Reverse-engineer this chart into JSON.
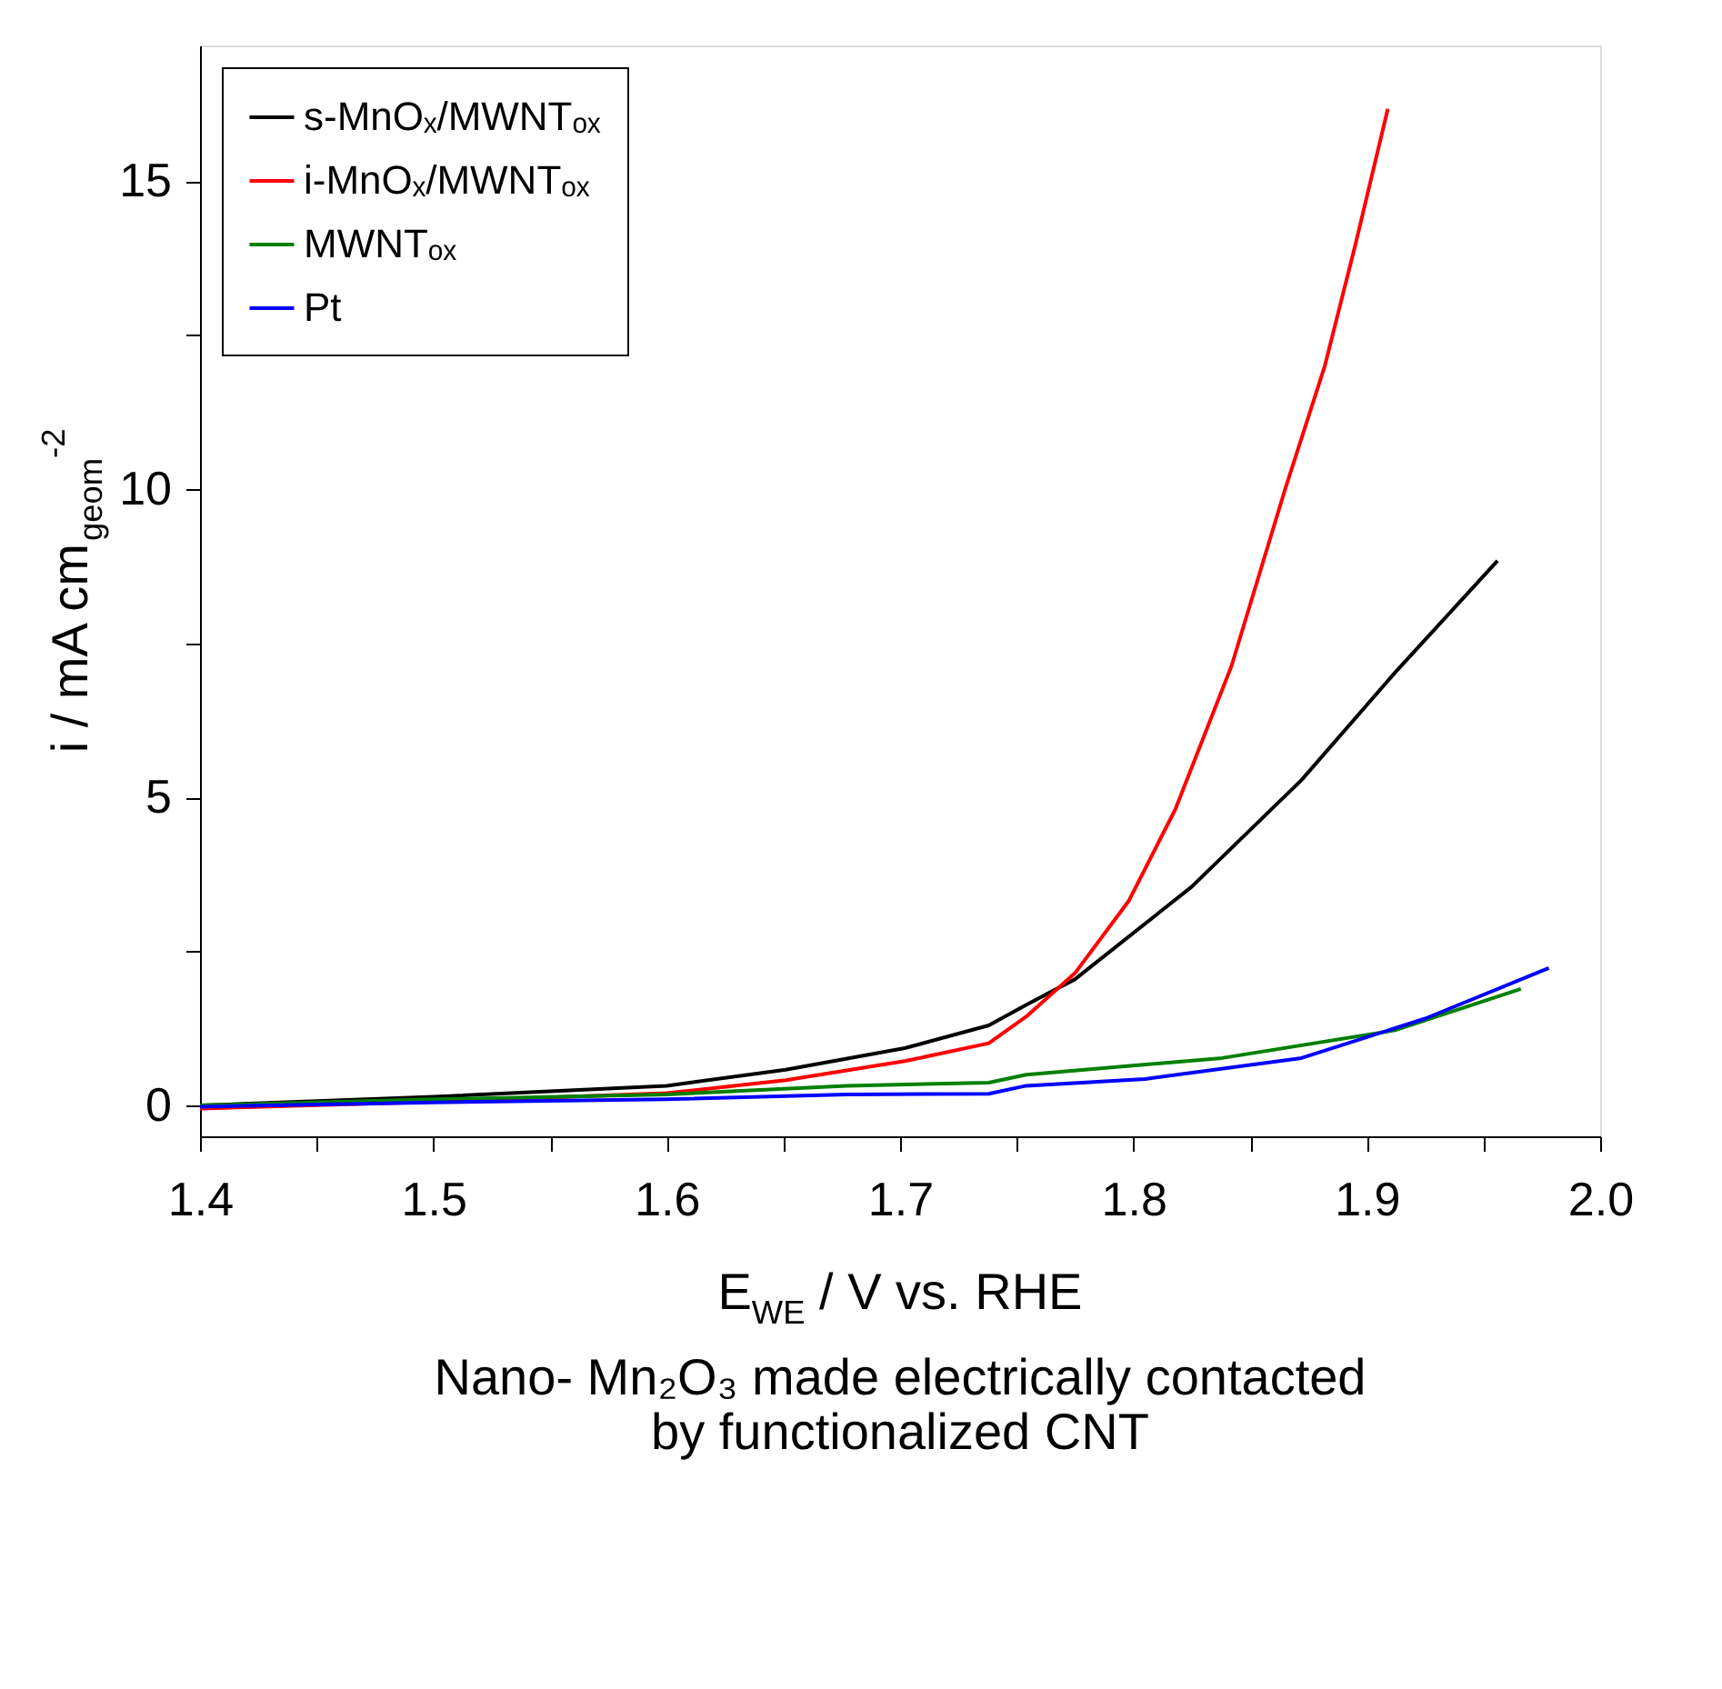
{
  "chart_data": {
    "type": "line",
    "xlabel": "E$_{WE}$ / V vs. RHE",
    "ylabel": "i / mA cm$_{geom}$$^{-2}$",
    "annotations": [
      "Nano- Mn₂O₃ made electrically contacted by functionalized CNT"
    ],
    "xlim": [
      1.4,
      2.0
    ],
    "ylim": [
      -0.5,
      17.2
    ],
    "xticks": [
      1.4,
      {
        "value": 1.45,
        "label": null
      },
      1.5,
      {
        "value": 1.55,
        "label": null
      },
      1.6,
      {
        "value": 1.65,
        "label": null
      },
      1.7,
      {
        "value": 1.75,
        "label": null
      },
      1.8,
      {
        "value": 1.85,
        "label": null
      },
      1.9,
      {
        "value": 1.95,
        "label": null
      },
      {
        "value": 2.0,
        "label": "2.0"
      }
    ],
    "yticks": [
      0,
      {
        "value": 2.5,
        "label": null
      },
      5,
      {
        "value": 7.5,
        "label": null
      },
      10,
      {
        "value": 12.5,
        "label": null
      },
      15
    ],
    "grid": false,
    "legend": "top left",
    "marker": "none",
    "line_style": "solid",
    "series": [
      {
        "name": "s-MnOₓ/MWNTₒₓ",
        "color": "#000000",
        "x": [
          1.4,
          1.5,
          1.6,
          1.651,
          1.702,
          1.738,
          1.754,
          1.775,
          1.825,
          1.872,
          1.912,
          1.956
        ],
        "values": [
          0.0,
          0.14,
          0.32,
          0.58,
          0.93,
          1.3,
          1.63,
          2.05,
          3.55,
          5.28,
          7.02,
          8.84
        ]
      },
      {
        "name": "i-MnOₓ/MWNTₒₓ",
        "color": "#ff0000",
        "x": [
          1.4,
          1.5,
          1.6,
          1.651,
          1.702,
          1.738,
          1.754,
          1.775,
          1.798,
          1.818,
          1.842,
          1.865,
          1.882,
          1.895,
          1.909
        ],
        "values": [
          -0.05,
          0.06,
          0.2,
          0.41,
          0.72,
          1.01,
          1.44,
          2.15,
          3.32,
          4.81,
          7.13,
          10.0,
          12.0,
          13.95,
          16.17
        ]
      },
      {
        "name": "MWNTₒₓ",
        "color": "#008000",
        "x": [
          1.4,
          1.5,
          1.6,
          1.677,
          1.738,
          1.754,
          1.838,
          1.912,
          1.966
        ],
        "values": [
          0.0,
          0.1,
          0.18,
          0.32,
          0.37,
          0.5,
          0.77,
          1.22,
          1.89
        ]
      },
      {
        "name": "Pt",
        "color": "#0000ff",
        "x": [
          1.4,
          1.5,
          1.6,
          1.677,
          1.738,
          1.754,
          1.805,
          1.872,
          1.925,
          1.978
        ],
        "values": [
          -0.02,
          0.05,
          0.1,
          0.18,
          0.19,
          0.32,
          0.43,
          0.77,
          1.41,
          2.23
        ]
      }
    ]
  }
}
